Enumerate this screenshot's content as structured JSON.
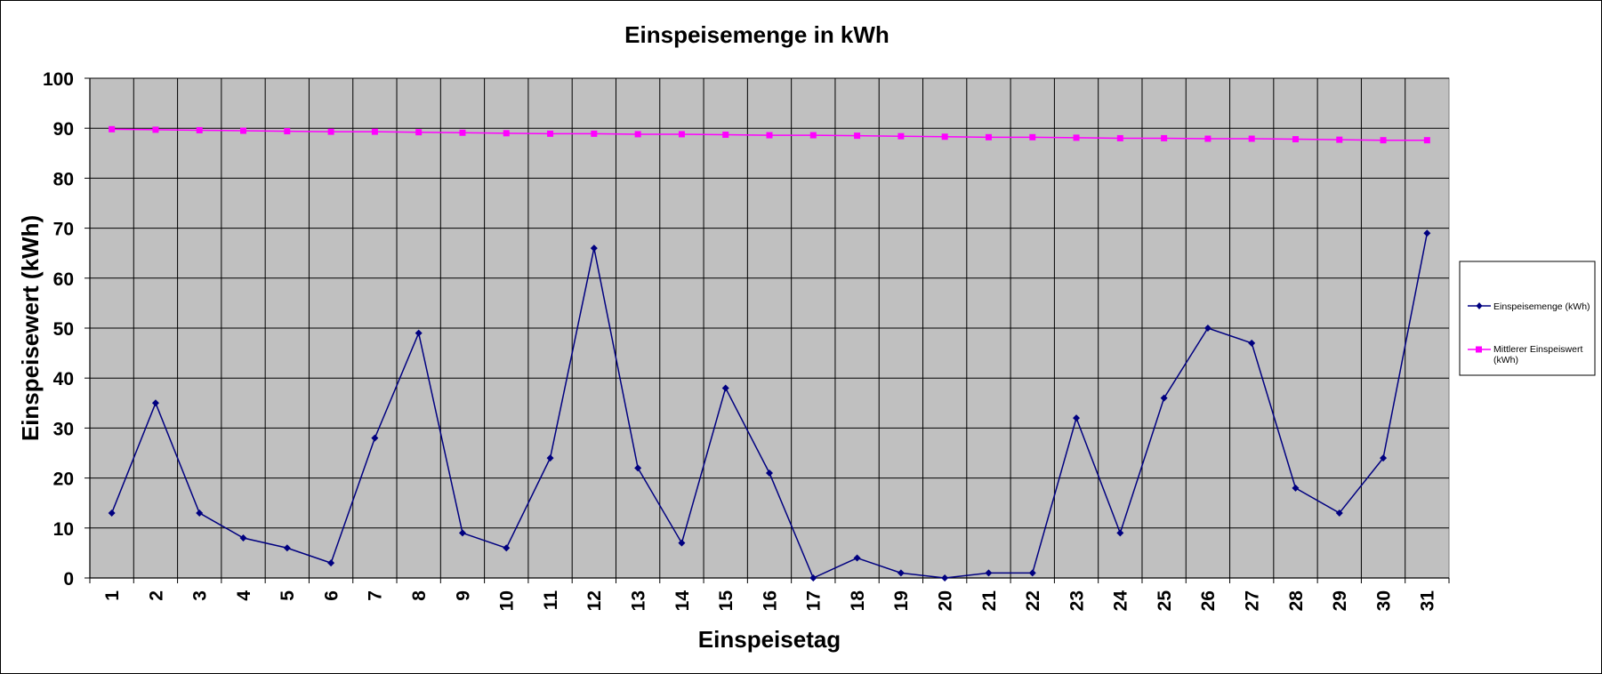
{
  "chart_data": {
    "type": "line",
    "title": "Einspeisemenge in kWh",
    "xlabel": "Einspeisetag",
    "ylabel": "Einspeisewert  (kWh)",
    "ylim": [
      0,
      100
    ],
    "ytick_step": 10,
    "grid": true,
    "legend_position": "right",
    "plot_background": "#c0c0c0",
    "categories": [
      "1",
      "2",
      "3",
      "4",
      "5",
      "6",
      "7",
      "8",
      "9",
      "10",
      "11",
      "12",
      "13",
      "14",
      "15",
      "16",
      "17",
      "18",
      "19",
      "20",
      "21",
      "22",
      "23",
      "24",
      "25",
      "26",
      "27",
      "28",
      "29",
      "30",
      "31"
    ],
    "series": [
      {
        "name": "Einspeisemenge (kWh)",
        "color": "#000080",
        "marker": "diamond",
        "values": [
          13,
          35,
          13,
          8,
          6,
          3,
          28,
          49,
          9,
          6,
          24,
          66,
          22,
          7,
          38,
          21,
          0,
          4,
          1,
          0,
          1,
          1,
          32,
          9,
          36,
          50,
          47,
          18,
          13,
          24,
          69
        ]
      },
      {
        "name": "Mittlerer Einspeiswert (kWh)",
        "color": "#ff00ff",
        "marker": "square",
        "values": [
          89.8,
          89.7,
          89.6,
          89.5,
          89.4,
          89.3,
          89.3,
          89.2,
          89.1,
          89.0,
          88.9,
          88.9,
          88.8,
          88.8,
          88.7,
          88.6,
          88.6,
          88.5,
          88.4,
          88.3,
          88.2,
          88.2,
          88.1,
          88.0,
          88.0,
          87.9,
          87.9,
          87.8,
          87.7,
          87.6,
          87.6
        ]
      }
    ]
  }
}
